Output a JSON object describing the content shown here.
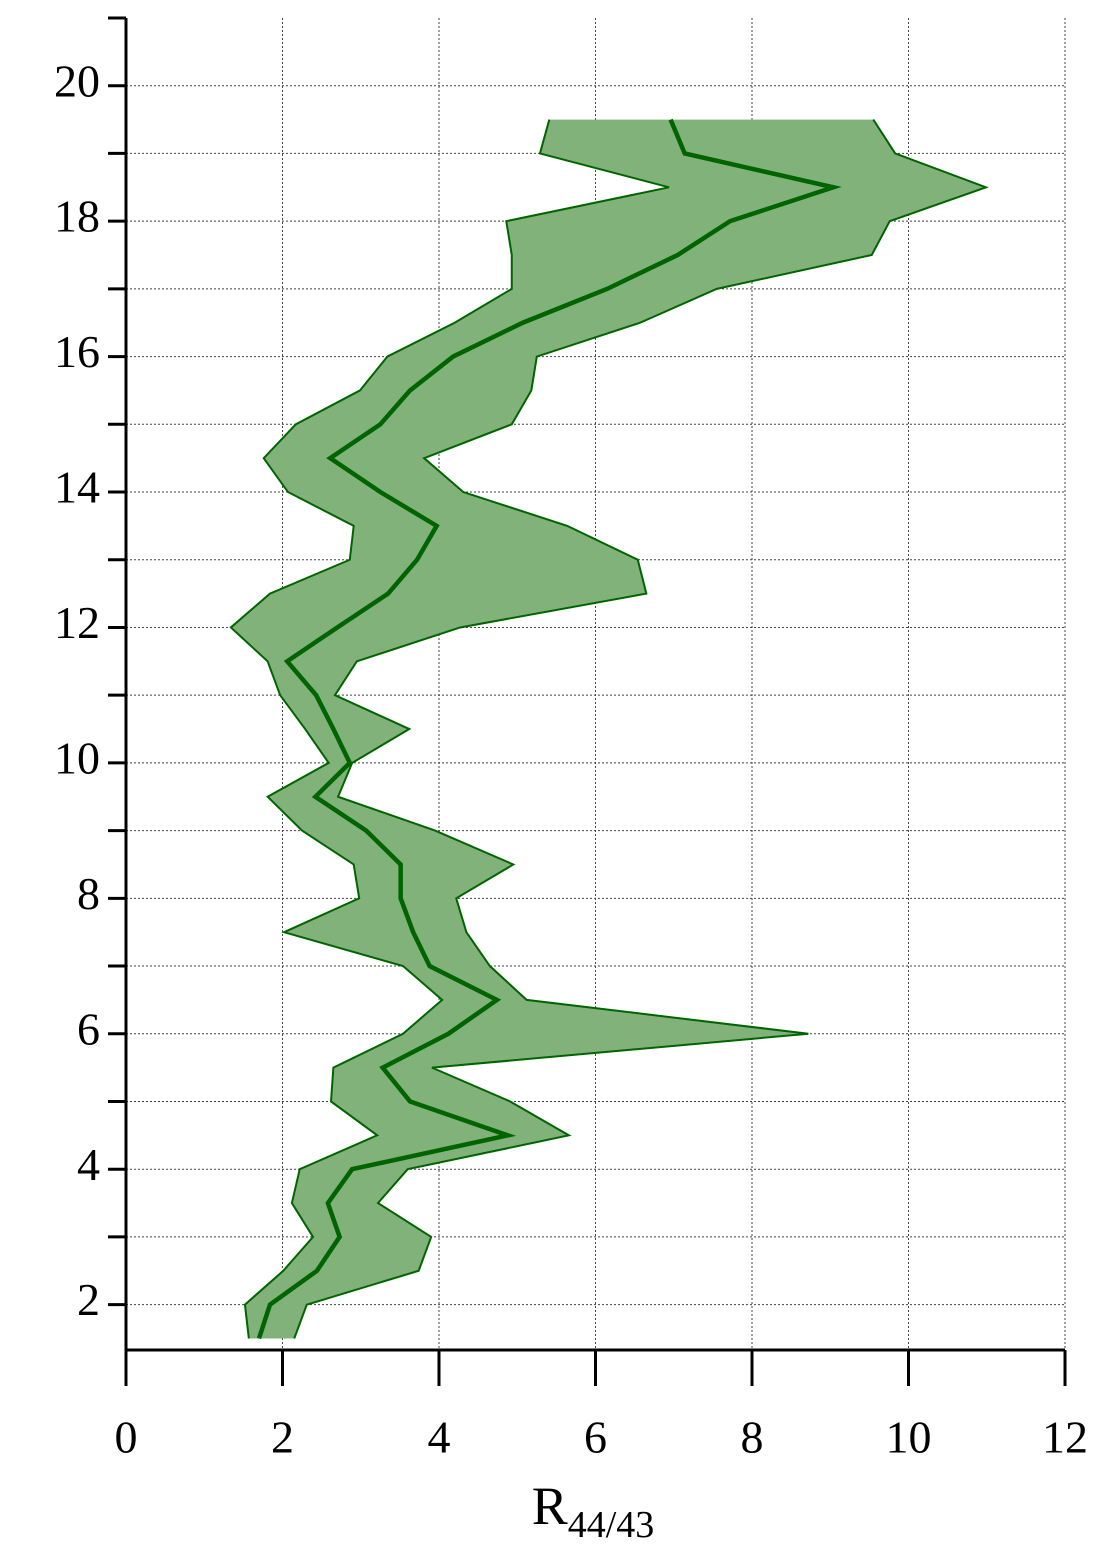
{
  "chart_data": {
    "type": "band-line",
    "xlabel": "R",
    "xlabel_sub": "44/43",
    "y": [
      19.5,
      19,
      18.5,
      18,
      17.5,
      17,
      16.5,
      16,
      15.5,
      15,
      14.5,
      14,
      13.5,
      13,
      12.5,
      12,
      11.5,
      11,
      10.5,
      10,
      9.5,
      9,
      8.5,
      8,
      7.5,
      7,
      6.5,
      6,
      5.5,
      5,
      4.5,
      4,
      3.5,
      3,
      2.5,
      2,
      1.5
    ],
    "line": {
      "color": "#006400",
      "values": [
        6.96,
        7.14,
        9.04,
        7.72,
        7.05,
        6.15,
        5.07,
        4.18,
        3.63,
        3.25,
        2.61,
        3.25,
        3.97,
        3.72,
        3.35,
        2.7,
        2.06,
        2.43,
        2.65,
        2.86,
        2.42,
        3.07,
        3.51,
        3.51,
        3.67,
        3.88,
        4.74,
        4.12,
        3.28,
        3.63,
        4.88,
        2.89,
        2.58,
        2.73,
        2.44,
        1.84,
        1.7
      ]
    },
    "band": {
      "color": "#80b27a",
      "edge_color": "#006400",
      "lower": [
        5.41,
        5.29,
        6.94,
        4.86,
        4.93,
        4.93,
        4.2,
        3.34,
        2.99,
        2.17,
        1.76,
        2.07,
        2.91,
        2.86,
        1.84,
        1.34,
        1.81,
        1.97,
        2.29,
        2.59,
        1.81,
        2.25,
        2.91,
        2.98,
        2.02,
        3.54,
        4.04,
        3.54,
        2.65,
        2.62,
        3.21,
        2.22,
        2.12,
        2.39,
        2.01,
        1.52,
        1.57
      ],
      "upper": [
        9.55,
        9.83,
        10.99,
        9.76,
        9.53,
        7.55,
        6.57,
        5.25,
        5.18,
        4.93,
        3.81,
        4.31,
        5.64,
        6.54,
        6.65,
        4.27,
        2.95,
        2.67,
        3.62,
        2.89,
        2.71,
        3.95,
        4.95,
        4.22,
        4.35,
        4.65,
        5.12,
        8.72,
        3.91,
        4.91,
        5.66,
        3.6,
        3.22,
        3.9,
        3.74,
        2.31,
        2.15
      ]
    },
    "xlim": [
      0,
      12
    ],
    "xticks": [
      0,
      2,
      4,
      6,
      8,
      10,
      12
    ],
    "ylim": [
      1.33,
      21
    ],
    "yticks": [
      2,
      4,
      6,
      8,
      10,
      12,
      14,
      16,
      18,
      20
    ],
    "yminorticks": [
      3,
      5,
      7,
      9,
      11,
      13,
      15,
      17,
      19,
      21
    ],
    "grid": true
  }
}
